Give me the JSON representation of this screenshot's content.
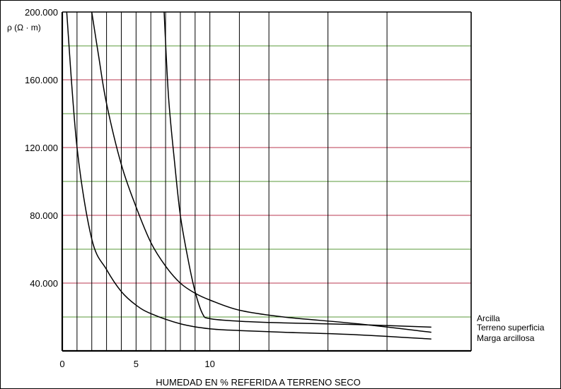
{
  "chart_data": {
    "type": "line",
    "ylabel": "ρ (Ω · m)",
    "xlabel": "HUMEDAD EN % REFERIDA A TERRENO SECO",
    "xlim": [
      0,
      25
    ],
    "ylim": [
      0,
      200000
    ],
    "x_ticks": [
      {
        "value": 0,
        "label": "0"
      },
      {
        "value": 5,
        "label": "5"
      },
      {
        "value": 10,
        "label": "10"
      }
    ],
    "y_ticks": [
      {
        "value": 40000,
        "label": "40.000"
      },
      {
        "value": 80000,
        "label": "80.000"
      },
      {
        "value": 120000,
        "label": "120.000"
      },
      {
        "value": 160000,
        "label": "160.000"
      },
      {
        "value": 200000,
        "label": "200.000"
      }
    ],
    "vertical_gridlines_x": [
      1,
      2,
      3,
      4,
      5,
      6,
      7,
      8,
      9,
      10,
      12,
      14,
      18,
      22
    ],
    "grid": true,
    "legend_placement": "right",
    "colors": {
      "curve": "#000000",
      "axis": "#000000",
      "vertical_grid": "#000000",
      "horizontal_grid_red": "#b83a52",
      "horizontal_grid_green": "#5a9a3a"
    },
    "series": [
      {
        "name": "Arcilla",
        "x": [
          6.9,
          7.2,
          7.6,
          8.0,
          8.5,
          9.0,
          9.5,
          10.0,
          12.0,
          15.0,
          20.0,
          25.0
        ],
        "y": [
          200000,
          150000,
          112000,
          80000,
          55000,
          35000,
          22000,
          19000,
          17500,
          16500,
          15500,
          14000
        ]
      },
      {
        "name": "Terreno superficia",
        "x": [
          2.0,
          2.5,
          3.0,
          4.0,
          5.0,
          6.0,
          7.0,
          8.0,
          9.0,
          10.0,
          12.0,
          15.0,
          20.0,
          25.0
        ],
        "y": [
          200000,
          172000,
          146000,
          110000,
          85000,
          64000,
          50000,
          40000,
          34000,
          30000,
          24000,
          20000,
          16000,
          11000
        ]
      },
      {
        "name": "Marga arcillosa",
        "x": [
          0.3,
          1.0,
          2.0,
          3.0,
          4.0,
          5.0,
          6.0,
          8.0,
          10.0,
          12.0,
          15.0,
          20.0,
          25.0
        ],
        "y": [
          200000,
          120000,
          66000,
          48000,
          35000,
          27000,
          22000,
          16000,
          13000,
          12000,
          11000,
          9500,
          7000
        ]
      }
    ]
  }
}
